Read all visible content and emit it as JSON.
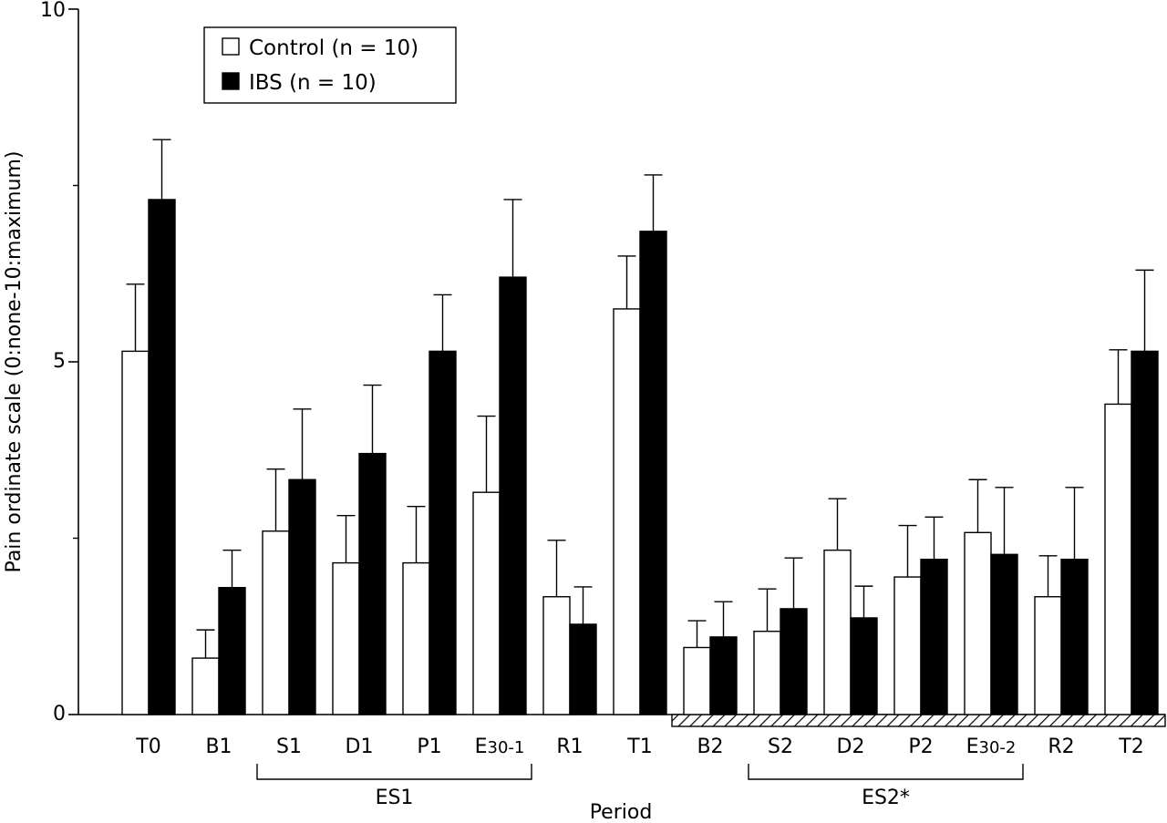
{
  "chart_data": {
    "type": "bar",
    "ylabel": "Pain ordinate scale (0:none-10:maximum)",
    "xlabel": "Period",
    "ylim": [
      0,
      10
    ],
    "yticks": [
      "0",
      "5",
      "10"
    ],
    "yticks_values": [
      0,
      5,
      10
    ],
    "categories": [
      "T0",
      "B1",
      "S1",
      "D1",
      "P1",
      "E30-1",
      "R1",
      "T1",
      "B2",
      "S2",
      "D2",
      "P2",
      "E30-2",
      "R2",
      "T2"
    ],
    "category_labels": [
      {
        "main": "T0",
        "sub": ""
      },
      {
        "main": "B1",
        "sub": ""
      },
      {
        "main": "S1",
        "sub": ""
      },
      {
        "main": "D1",
        "sub": ""
      },
      {
        "main": "P1",
        "sub": ""
      },
      {
        "main": "E",
        "sub": "30-1"
      },
      {
        "main": "R1",
        "sub": ""
      },
      {
        "main": "T1",
        "sub": ""
      },
      {
        "main": "B2",
        "sub": ""
      },
      {
        "main": "S2",
        "sub": ""
      },
      {
        "main": "D2",
        "sub": ""
      },
      {
        "main": "P2",
        "sub": ""
      },
      {
        "main": "E",
        "sub": "30-2"
      },
      {
        "main": "R2",
        "sub": ""
      },
      {
        "main": "T2",
        "sub": ""
      }
    ],
    "series": [
      {
        "name": "Control (n = 10)",
        "color": "#ffffff",
        "values": [
          5.15,
          0.8,
          2.6,
          2.15,
          2.15,
          3.15,
          1.67,
          5.75,
          0.95,
          1.18,
          2.33,
          1.95,
          2.58,
          1.67,
          4.4
        ],
        "errors": [
          0.95,
          0.4,
          0.88,
          0.67,
          0.8,
          1.08,
          0.8,
          0.75,
          0.38,
          0.6,
          0.73,
          0.73,
          0.75,
          0.58,
          0.77
        ]
      },
      {
        "name": "IBS (n = 10)",
        "color": "#000000",
        "values": [
          7.3,
          1.8,
          3.33,
          3.7,
          5.15,
          6.2,
          1.28,
          6.85,
          1.1,
          1.5,
          1.37,
          2.2,
          2.27,
          2.2,
          5.15
        ],
        "errors": [
          0.85,
          0.53,
          1.0,
          0.97,
          0.8,
          1.1,
          0.53,
          0.8,
          0.5,
          0.72,
          0.45,
          0.6,
          0.95,
          1.02,
          1.15
        ]
      }
    ],
    "groups": [
      {
        "label": "ES1",
        "from": "S1",
        "to": "E30-1"
      },
      {
        "label": "ES2*",
        "from": "S2",
        "to": "E30-2"
      }
    ],
    "hatched_baseline": {
      "from": "B2",
      "to": "T2"
    },
    "legend_position": "top-left",
    "grid": false
  }
}
